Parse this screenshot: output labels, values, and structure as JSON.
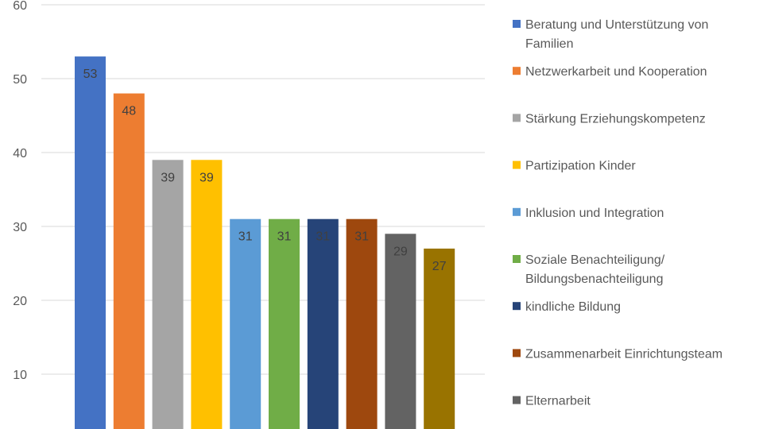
{
  "chart_data": {
    "type": "bar",
    "title": "",
    "xlabel": "",
    "ylabel": "",
    "ylim": [
      0,
      60
    ],
    "yticks": [
      10,
      20,
      30,
      40,
      50,
      60
    ],
    "grid": true,
    "legend_position": "right",
    "series": [
      {
        "name": "Beratung und Unterstützung von Familien",
        "value": 53,
        "color": "#4472C4"
      },
      {
        "name": "Netzwerkarbeit und Kooperation",
        "value": 48,
        "color": "#ED7D31"
      },
      {
        "name": "Stärkung Erziehungskompetenz",
        "value": 39,
        "color": "#A5A5A5"
      },
      {
        "name": "Partizipation Kinder",
        "value": 39,
        "color": "#FFC000"
      },
      {
        "name": "Inklusion und Integration",
        "value": 31,
        "color": "#5B9BD5"
      },
      {
        "name": "Soziale Benachteiligung/ Bildungsbenachteiligung",
        "value": 31,
        "color": "#70AD47"
      },
      {
        "name": "kindliche Bildung",
        "value": 31,
        "color": "#264478"
      },
      {
        "name": "Zusammenarbeit Einrichtungsteam",
        "value": 31,
        "color": "#9E480E"
      },
      {
        "name": "Elternarbeit",
        "value": 29,
        "color": "#636363"
      },
      {
        "name": "",
        "value": 27,
        "color": "#997300"
      }
    ]
  }
}
